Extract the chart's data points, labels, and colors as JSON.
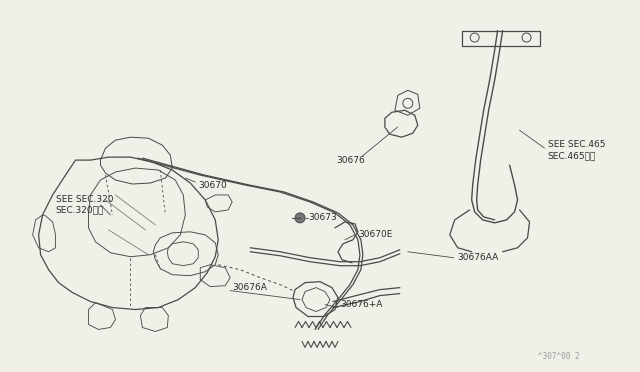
{
  "background_color": "#f0efe8",
  "line_color": "#4a4a4a",
  "text_color": "#2a2a2a",
  "watermark": "^307^00 2",
  "labels": {
    "sec320": "SEE SEC.320\nSEC.320参図",
    "sec465": "SEE SEC.465\nSEC.465参照",
    "p30670": "30670",
    "p30670E": "30670E",
    "p30673": "30673",
    "p30676": "30676",
    "p30676A": "30676A",
    "p30676AA": "30676AA",
    "p30676plusA": "30676+A"
  }
}
